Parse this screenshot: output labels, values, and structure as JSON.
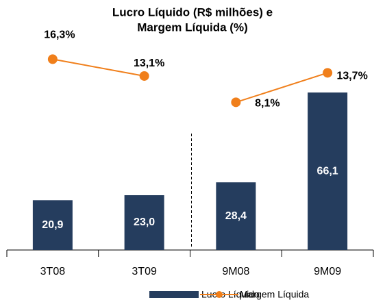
{
  "chart_data": {
    "type": "bar_line",
    "title": [
      "Lucro Líquido (R$ milhões) e",
      "Margem Líquida (%)"
    ],
    "categories": [
      "3T08",
      "3T09",
      "9M08",
      "9M09"
    ],
    "divider_after": 1,
    "ylim": [
      0,
      70
    ],
    "y2lim": [
      -20,
      20
    ],
    "series": [
      {
        "name": "Lucro Líquido",
        "color": "#253d5e",
        "values": [
          20.9,
          23.0,
          28.4,
          66.1
        ],
        "value_labels": [
          "20,9",
          "23,0",
          "28,4",
          "66,1"
        ]
      },
      {
        "name": "Margem Líquida",
        "color": "#f07f1b",
        "axis": "y2",
        "values": [
          16.3,
          13.1,
          8.1,
          13.7
        ],
        "value_labels": [
          "16,3%",
          "13,1%",
          "8,1%",
          "13,7%"
        ]
      }
    ]
  }
}
